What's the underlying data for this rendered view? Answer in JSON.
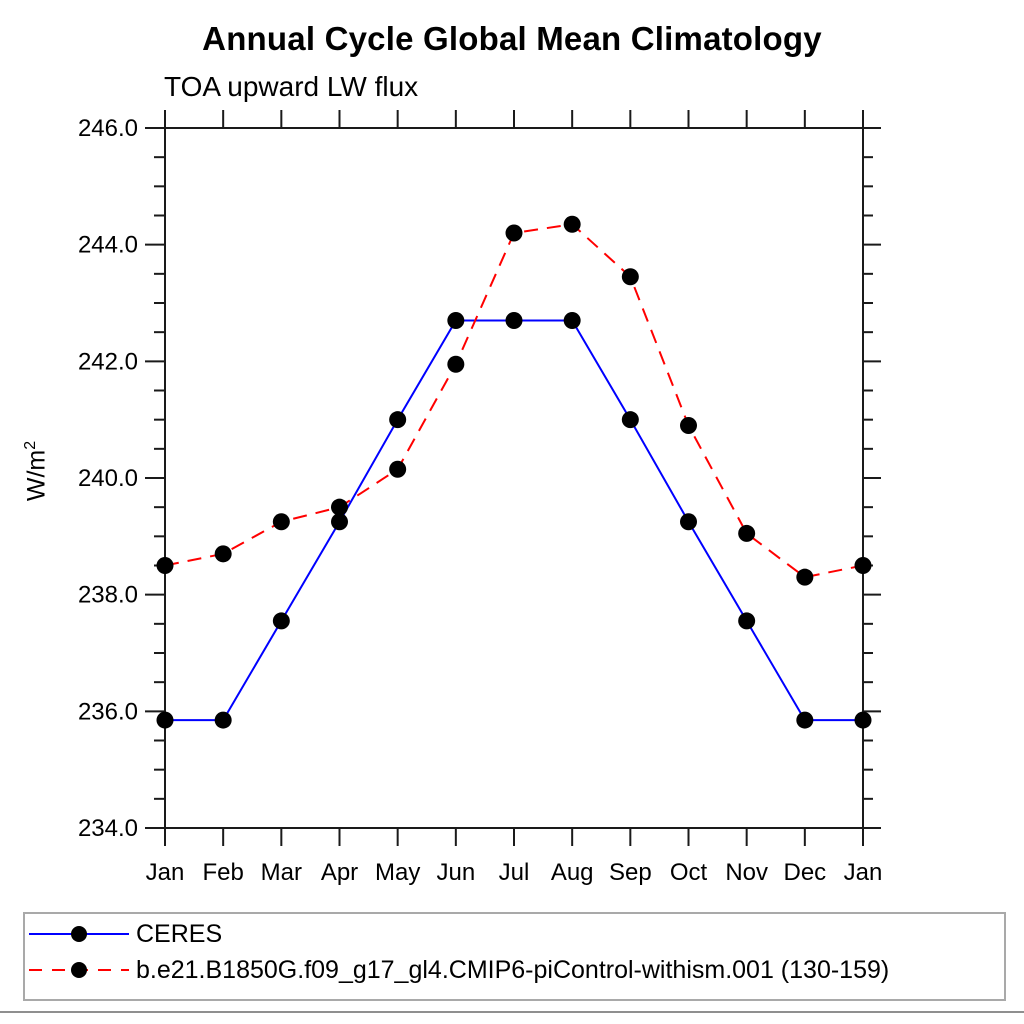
{
  "title": "Annual Cycle Global Mean Climatology",
  "subtitle": "TOA upward LW flux",
  "chart_data": {
    "type": "line",
    "title": "Annual Cycle Global Mean Climatology",
    "subtitle": "TOA upward LW flux",
    "ylabel": {
      "text": "W/m",
      "sup": "2"
    },
    "ylim": [
      234.0,
      246.0
    ],
    "ytick_interval": 2.0,
    "yminor_interval": 0.5,
    "ytick_labels": [
      "234.0",
      "236.0",
      "238.0",
      "240.0",
      "242.0",
      "244.0",
      "246.0"
    ],
    "x_categories": [
      "Jan",
      "Feb",
      "Mar",
      "Apr",
      "May",
      "Jun",
      "Jul",
      "Aug",
      "Sep",
      "Oct",
      "Nov",
      "Dec",
      "Jan"
    ],
    "grid": false,
    "legend_position": "bottom-left-box",
    "marker": {
      "shape": "circle",
      "color": "#000000"
    },
    "series": [
      {
        "name": "CERES",
        "color": "#0000ff",
        "style": "solid",
        "values": [
          235.85,
          235.85,
          237.55,
          239.25,
          241.0,
          242.7,
          242.7,
          242.7,
          241.0,
          239.25,
          237.55,
          235.85,
          235.85
        ]
      },
      {
        "name": "b.e21.B1850G.f09_g17_gl4.CMIP6-piControl-withism.001 (130-159)",
        "color": "#ff0000",
        "style": "dashed",
        "values": [
          238.5,
          238.7,
          239.25,
          239.5,
          240.15,
          241.95,
          244.2,
          244.35,
          243.45,
          240.9,
          239.05,
          238.3,
          238.5
        ]
      }
    ]
  }
}
